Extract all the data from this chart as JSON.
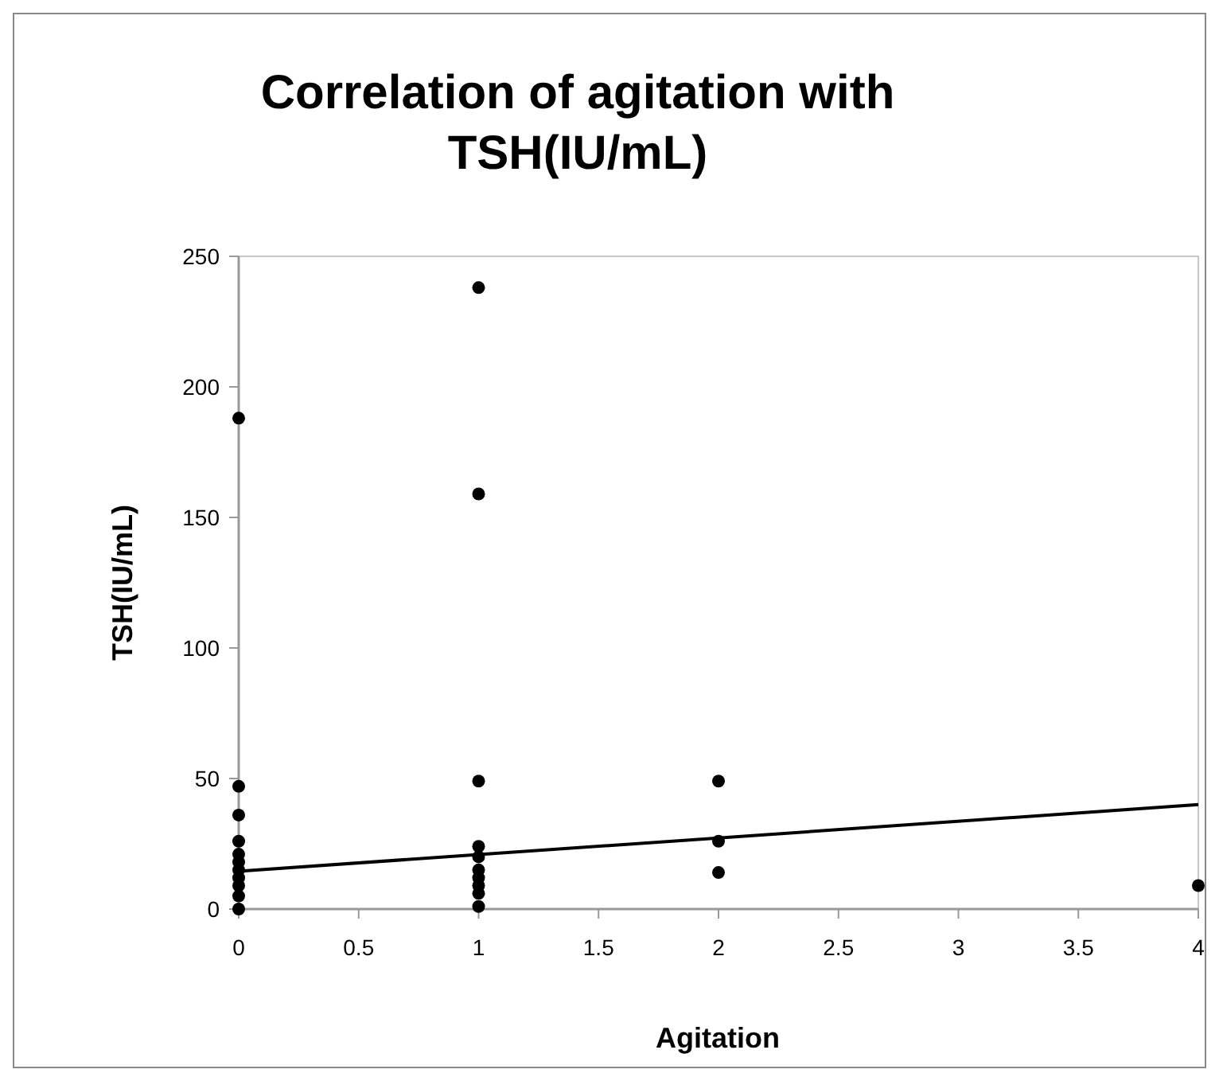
{
  "chart_data": {
    "type": "scatter",
    "title": "Correlation of agitation with TSH(IU/mL)",
    "xlabel": "Agitation",
    "ylabel": "TSH(IU/mL)",
    "xlim": [
      0,
      4
    ],
    "xticks": [
      0,
      0.5,
      1,
      1.5,
      2,
      2.5,
      3,
      3.5,
      4
    ],
    "ylim": [
      0,
      250
    ],
    "yticks": [
      0,
      50,
      100,
      150,
      200,
      250
    ],
    "grid": false,
    "marker": "circle",
    "series": [
      {
        "color": "#000000",
        "x": [
          0,
          0,
          0,
          0,
          0,
          0,
          0,
          0,
          0,
          0,
          0,
          1,
          1,
          1,
          1,
          1,
          1,
          1,
          1,
          1,
          1,
          2,
          2,
          2,
          4
        ],
        "values": [
          188,
          47,
          36,
          26,
          21,
          18,
          15,
          12,
          9,
          5,
          0,
          238,
          159,
          49,
          24,
          20,
          15,
          12,
          9,
          6,
          1,
          49,
          26,
          14,
          9
        ]
      },
      {
        "type": "line",
        "color": "#000000",
        "marker": "none",
        "line_style": "solid",
        "x": [
          0,
          4
        ],
        "values": [
          14.5,
          40
        ]
      }
    ]
  }
}
